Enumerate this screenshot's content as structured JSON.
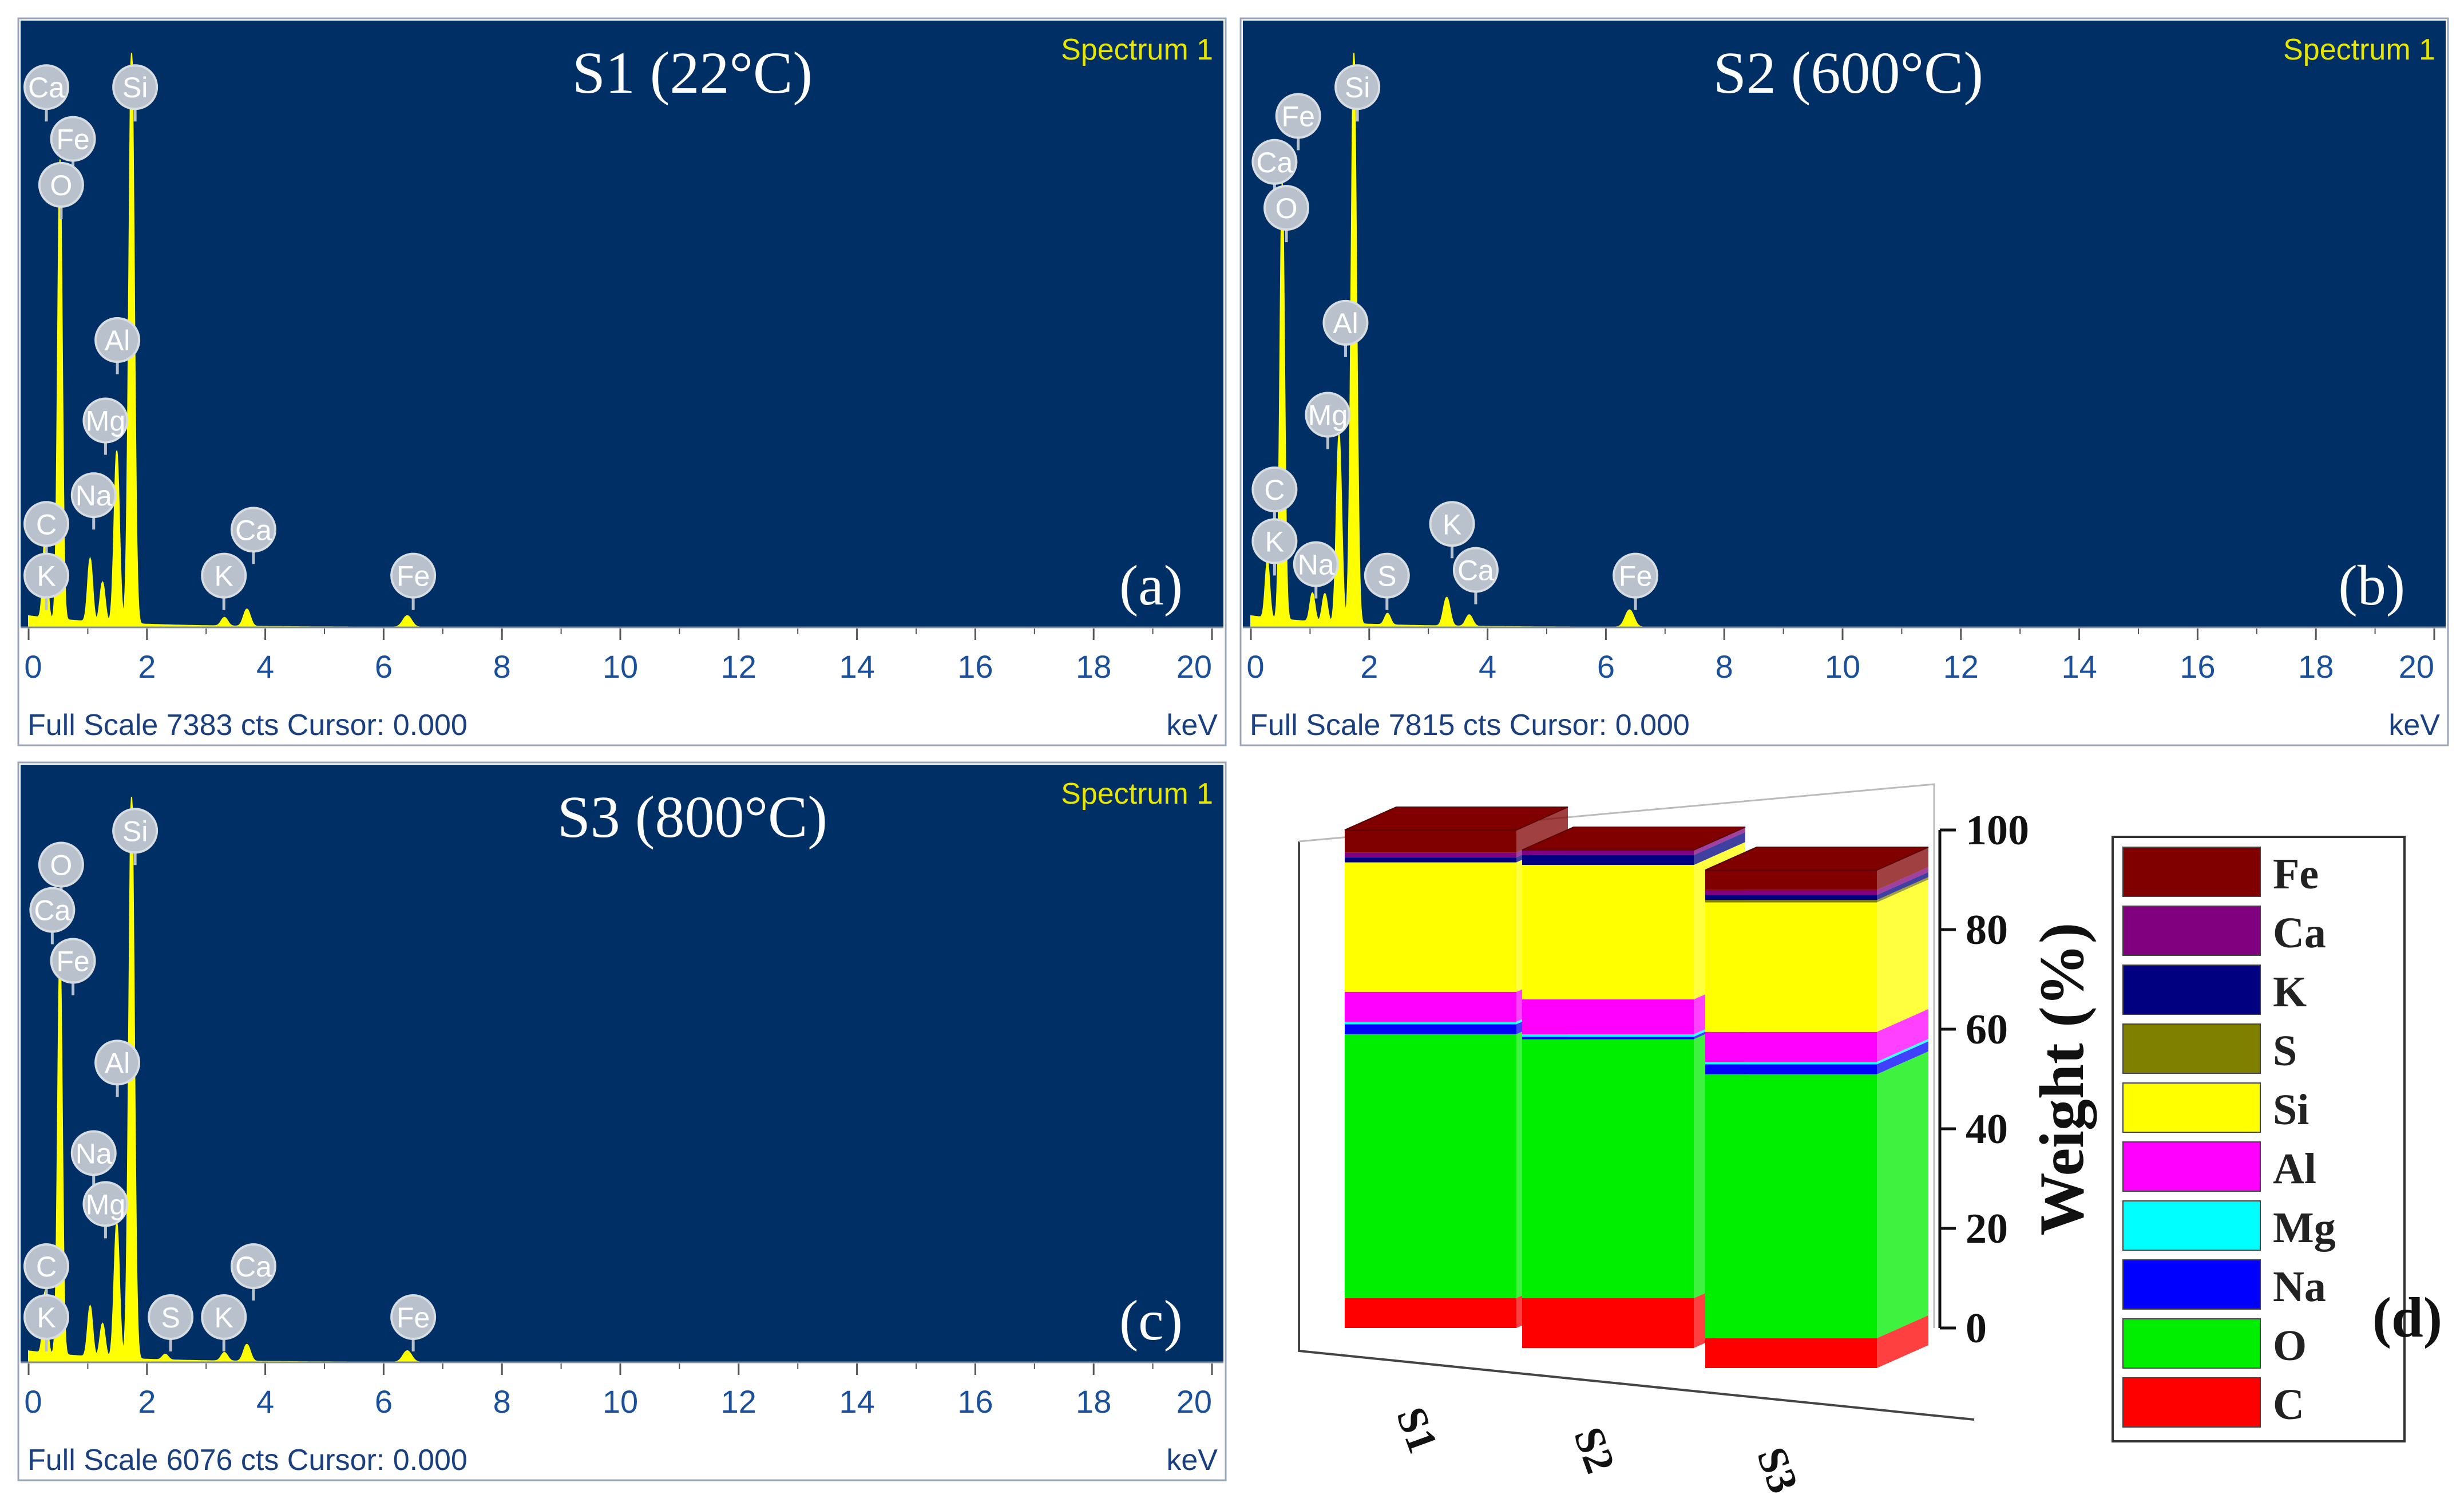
{
  "chart_data": [
    {
      "type": "line",
      "panel_label": "(a)",
      "title": "S1 (22°C)",
      "spectrum_label": "Spectrum 1",
      "footer_left": "Full Scale 7383 cts Cursor: 0.000",
      "xlabel": "keV",
      "xlim": [
        0,
        20
      ],
      "xticks": [
        "0",
        "2",
        "4",
        "6",
        "8",
        "10",
        "12",
        "14",
        "16",
        "18",
        "20"
      ],
      "peaks": [
        {
          "el": "C",
          "x": 0.28,
          "y": 0.15
        },
        {
          "el": "O",
          "x": 0.53,
          "y": 0.8
        },
        {
          "el": "Na",
          "x": 1.04,
          "y": 0.11
        },
        {
          "el": "Mg",
          "x": 1.25,
          "y": 0.07
        },
        {
          "el": "Al",
          "x": 1.49,
          "y": 0.3
        },
        {
          "el": "Si",
          "x": 1.74,
          "y": 1.0
        },
        {
          "el": "K",
          "x": 3.31,
          "y": 0.015
        },
        {
          "el": "Ca",
          "x": 3.69,
          "y": 0.03
        },
        {
          "el": "Fe",
          "x": 6.4,
          "y": 0.02
        }
      ],
      "labels": [
        {
          "el": "Ca",
          "x": 0.3,
          "y": 0.94
        },
        {
          "el": "Si",
          "x": 1.8,
          "y": 0.94
        },
        {
          "el": "Fe",
          "x": 0.75,
          "y": 0.85
        },
        {
          "el": "O",
          "x": 0.55,
          "y": 0.77
        },
        {
          "el": "Al",
          "x": 1.5,
          "y": 0.5
        },
        {
          "el": "Mg",
          "x": 1.3,
          "y": 0.36
        },
        {
          "el": "Na",
          "x": 1.1,
          "y": 0.23
        },
        {
          "el": "C",
          "x": 0.3,
          "y": 0.18
        },
        {
          "el": "Ca",
          "x": 3.8,
          "y": 0.17
        },
        {
          "el": "K",
          "x": 0.3,
          "y": 0.09
        },
        {
          "el": "K",
          "x": 3.3,
          "y": 0.09
        },
        {
          "el": "Fe",
          "x": 6.5,
          "y": 0.09
        }
      ]
    },
    {
      "type": "line",
      "panel_label": "(b)",
      "title": "S2 (600°C)",
      "spectrum_label": "Spectrum 1",
      "footer_left": "Full Scale 7815 cts Cursor: 0.000",
      "xlabel": "keV",
      "xlim": [
        0,
        20
      ],
      "xticks": [
        "0",
        "2",
        "4",
        "6",
        "8",
        "10",
        "12",
        "14",
        "16",
        "18",
        "20"
      ],
      "peaks": [
        {
          "el": "C",
          "x": 0.28,
          "y": 0.1
        },
        {
          "el": "O",
          "x": 0.53,
          "y": 0.76
        },
        {
          "el": "Na",
          "x": 1.04,
          "y": 0.05
        },
        {
          "el": "Mg",
          "x": 1.25,
          "y": 0.05
        },
        {
          "el": "Al",
          "x": 1.49,
          "y": 0.33
        },
        {
          "el": "Si",
          "x": 1.74,
          "y": 1.0
        },
        {
          "el": "S",
          "x": 2.31,
          "y": 0.02
        },
        {
          "el": "K",
          "x": 3.31,
          "y": 0.05
        },
        {
          "el": "Ca",
          "x": 3.69,
          "y": 0.02
        },
        {
          "el": "Fe",
          "x": 6.4,
          "y": 0.03
        }
      ],
      "labels": [
        {
          "el": "Si",
          "x": 1.8,
          "y": 0.94
        },
        {
          "el": "Fe",
          "x": 0.8,
          "y": 0.89
        },
        {
          "el": "Ca",
          "x": 0.4,
          "y": 0.81
        },
        {
          "el": "O",
          "x": 0.6,
          "y": 0.73
        },
        {
          "el": "Al",
          "x": 1.6,
          "y": 0.53
        },
        {
          "el": "Mg",
          "x": 1.3,
          "y": 0.37
        },
        {
          "el": "C",
          "x": 0.4,
          "y": 0.24
        },
        {
          "el": "K",
          "x": 3.4,
          "y": 0.18
        },
        {
          "el": "K",
          "x": 0.4,
          "y": 0.15
        },
        {
          "el": "Na",
          "x": 1.1,
          "y": 0.11
        },
        {
          "el": "S",
          "x": 2.3,
          "y": 0.09
        },
        {
          "el": "Ca",
          "x": 3.8,
          "y": 0.1
        },
        {
          "el": "Fe",
          "x": 6.5,
          "y": 0.09
        }
      ]
    },
    {
      "type": "line",
      "panel_label": "(c)",
      "title": "S3 (800°C)",
      "spectrum_label": "Spectrum 1",
      "footer_left": "Full Scale 6076 cts Cursor: 0.000",
      "xlabel": "keV",
      "xlim": [
        0,
        20
      ],
      "xticks": [
        "0",
        "2",
        "4",
        "6",
        "8",
        "10",
        "12",
        "14",
        "16",
        "18",
        "20"
      ],
      "peaks": [
        {
          "el": "C",
          "x": 0.28,
          "y": 0.11
        },
        {
          "el": "O",
          "x": 0.53,
          "y": 0.72
        },
        {
          "el": "Na",
          "x": 1.04,
          "y": 0.09
        },
        {
          "el": "Mg",
          "x": 1.25,
          "y": 0.06
        },
        {
          "el": "Al",
          "x": 1.49,
          "y": 0.24
        },
        {
          "el": "Si",
          "x": 1.74,
          "y": 1.0
        },
        {
          "el": "S",
          "x": 2.31,
          "y": 0.01
        },
        {
          "el": "K",
          "x": 3.31,
          "y": 0.015
        },
        {
          "el": "Ca",
          "x": 3.69,
          "y": 0.03
        },
        {
          "el": "Fe",
          "x": 6.4,
          "y": 0.02
        }
      ],
      "labels": [
        {
          "el": "Si",
          "x": 1.8,
          "y": 0.94
        },
        {
          "el": "O",
          "x": 0.55,
          "y": 0.88
        },
        {
          "el": "Ca",
          "x": 0.4,
          "y": 0.8
        },
        {
          "el": "Fe",
          "x": 0.75,
          "y": 0.71
        },
        {
          "el": "Al",
          "x": 1.5,
          "y": 0.53
        },
        {
          "el": "Na",
          "x": 1.1,
          "y": 0.37
        },
        {
          "el": "Mg",
          "x": 1.3,
          "y": 0.28
        },
        {
          "el": "C",
          "x": 0.3,
          "y": 0.17
        },
        {
          "el": "Ca",
          "x": 3.8,
          "y": 0.17
        },
        {
          "el": "K",
          "x": 0.3,
          "y": 0.08
        },
        {
          "el": "S",
          "x": 2.4,
          "y": 0.08
        },
        {
          "el": "K",
          "x": 3.3,
          "y": 0.08
        },
        {
          "el": "Fe",
          "x": 6.5,
          "y": 0.08
        }
      ]
    },
    {
      "type": "bar",
      "stacked": true,
      "panel_label": "(d)",
      "ylabel": "Weight (%)",
      "ylim": [
        0,
        100
      ],
      "yticks": [
        "0",
        "20",
        "40",
        "60",
        "80",
        "100"
      ],
      "categories": [
        "S1",
        "S2",
        "S3"
      ],
      "series": [
        {
          "name": "C",
          "color": "#ff0000",
          "values": [
            6,
            10,
            6
          ]
        },
        {
          "name": "O",
          "color": "#00ee00",
          "values": [
            53,
            52,
            53
          ]
        },
        {
          "name": "Na",
          "color": "#0000ff",
          "values": [
            2,
            0.5,
            2
          ]
        },
        {
          "name": "Mg",
          "color": "#00ffff",
          "values": [
            0.5,
            0.5,
            0.5
          ]
        },
        {
          "name": "Al",
          "color": "#ff00ff",
          "values": [
            6,
            7,
            6
          ]
        },
        {
          "name": "Si",
          "color": "#ffff00",
          "values": [
            26,
            27,
            26
          ]
        },
        {
          "name": "S",
          "color": "#808000",
          "values": [
            0,
            0,
            0.5
          ]
        },
        {
          "name": "K",
          "color": "#000080",
          "values": [
            1,
            2,
            1
          ]
        },
        {
          "name": "Ca",
          "color": "#800080",
          "values": [
            1,
            1,
            1
          ]
        },
        {
          "name": "Fe",
          "color": "#800000",
          "values": [
            4.5,
            0,
            4
          ]
        }
      ]
    }
  ],
  "colors": {
    "spectrum_bg": "#002f66",
    "peak": "#ffff00",
    "tick": "#1a4f9c"
  }
}
